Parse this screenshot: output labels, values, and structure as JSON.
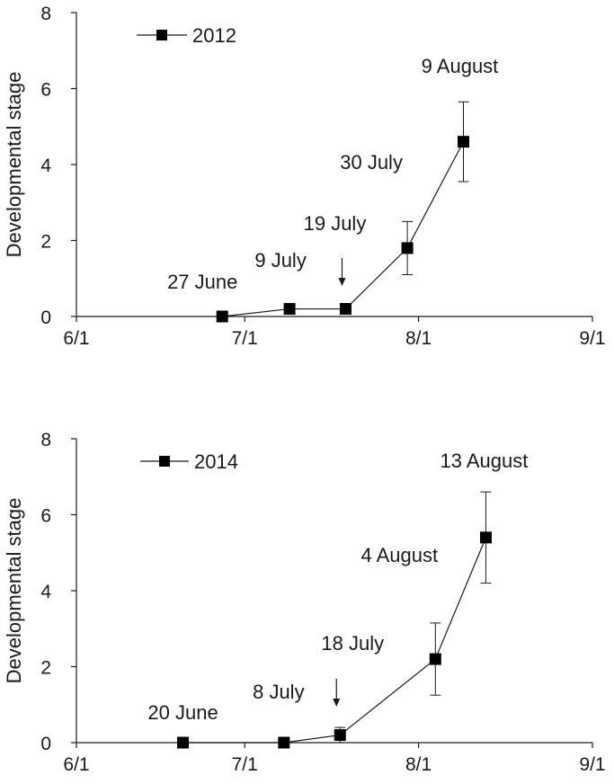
{
  "chart_data": [
    {
      "type": "line",
      "ylabel": "Developmental stage",
      "xlabel": "",
      "xlim": [
        "2012-06-01",
        "2012-09-01"
      ],
      "ylim": [
        0,
        8
      ],
      "x_ticks": [
        "6/1",
        "7/1",
        "8/1",
        "9/1"
      ],
      "y_ticks": [
        0,
        2,
        4,
        6,
        8
      ],
      "legend_position": "top-left",
      "series": [
        {
          "name": "2012",
          "points": [
            {
              "x": "2012-06-27",
              "y": 0,
              "err": 0
            },
            {
              "x": "2012-07-09",
              "y": 0.2,
              "err": 0
            },
            {
              "x": "2012-07-19",
              "y": 0.2,
              "err": 0
            },
            {
              "x": "2012-07-30",
              "y": 1.8,
              "err": 0.7
            },
            {
              "x": "2012-08-09",
              "y": 4.6,
              "err": 1.05
            }
          ]
        }
      ],
      "annotations": [
        {
          "text": "27 June",
          "x": "2012-06-27"
        },
        {
          "text": "9 July",
          "x": "2012-07-09"
        },
        {
          "text": "19 July",
          "x": "2012-07-19",
          "arrow": true
        },
        {
          "text": "30 July",
          "x": "2012-07-30"
        },
        {
          "text": "9 August",
          "x": "2012-08-09"
        }
      ]
    },
    {
      "type": "line",
      "ylabel": "Developmental stage",
      "xlabel": "",
      "xlim": [
        "2014-06-01",
        "2014-09-01"
      ],
      "ylim": [
        0,
        8
      ],
      "x_ticks": [
        "6/1",
        "7/1",
        "8/1",
        "9/1"
      ],
      "y_ticks": [
        0,
        2,
        4,
        6,
        8
      ],
      "legend_position": "top-left",
      "series": [
        {
          "name": "2014",
          "points": [
            {
              "x": "2014-06-20",
              "y": 0,
              "err": 0
            },
            {
              "x": "2014-07-08",
              "y": 0,
              "err": 0
            },
            {
              "x": "2014-07-18",
              "y": 0.2,
              "err": 0.2
            },
            {
              "x": "2014-08-04",
              "y": 2.2,
              "err": 0.95
            },
            {
              "x": "2014-08-13",
              "y": 5.4,
              "err": 1.2
            }
          ]
        }
      ],
      "annotations": [
        {
          "text": "20 June",
          "x": "2014-06-20"
        },
        {
          "text": "8 July",
          "x": "2014-07-08"
        },
        {
          "text": "18 July",
          "x": "2014-07-18",
          "arrow": true
        },
        {
          "text": "4 August",
          "x": "2014-08-04"
        },
        {
          "text": "13 August",
          "x": "2014-08-13"
        }
      ]
    }
  ]
}
